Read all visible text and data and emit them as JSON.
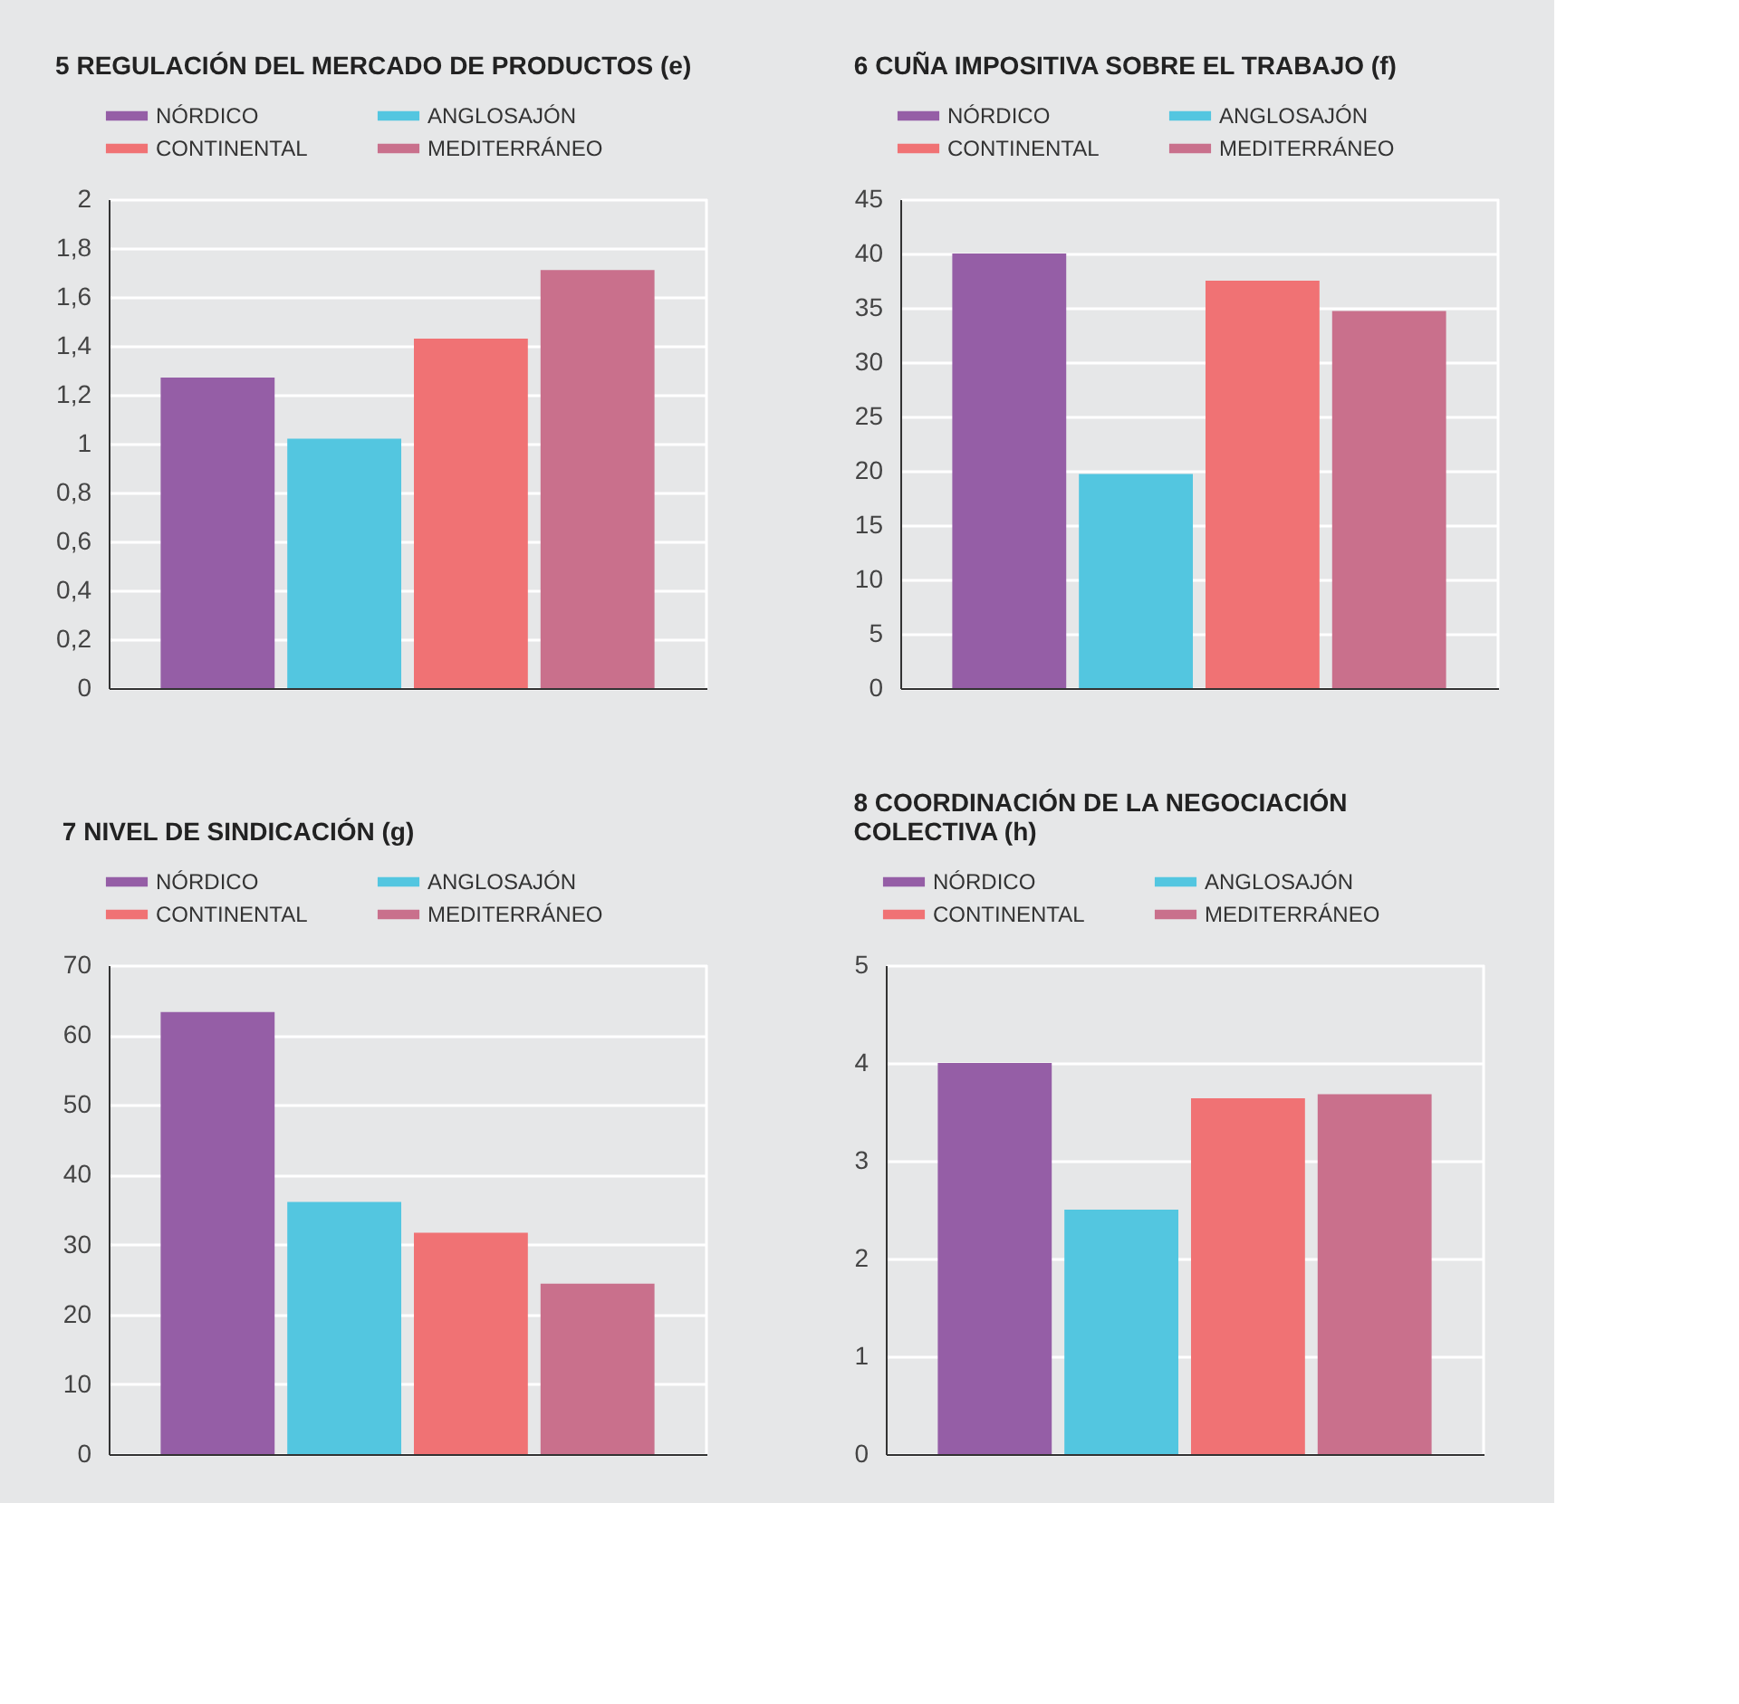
{
  "chart_data": [
    {
      "type": "bar",
      "title": "5  REGULACIÓN DEL MERCADO DE PRODUCTOS (e)",
      "categories": [
        null
      ],
      "legend": "top",
      "grid": "y",
      "tick_labels": "y",
      "ylim": [
        0,
        2
      ],
      "yticks": [
        0,
        {
          "value": 0.2,
          "label": "0,2"
        },
        {
          "value": 0.4,
          "label": "0,4"
        },
        {
          "value": 0.6,
          "label": "0,6"
        },
        {
          "value": 0.8,
          "label": "0,8"
        },
        1,
        {
          "value": 1.2,
          "label": "1,2"
        },
        {
          "value": 1.4,
          "label": "1,4"
        },
        {
          "value": 1.6,
          "label": "1,6"
        },
        {
          "value": 1.8,
          "label": "1,8"
        },
        2
      ],
      "series": [
        {
          "name": "NÓRDICO",
          "color": "#955ea6",
          "values": [
            1.27
          ]
        },
        {
          "name": "ANGLOSAJÓN",
          "color": "#53c6e0",
          "values": [
            1.02
          ]
        },
        {
          "name": "CONTINENTAL",
          "color": "#f07274",
          "values": [
            1.43
          ]
        },
        {
          "name": "MEDITERRÁNEO",
          "color": "#c9708c",
          "values": [
            1.71
          ]
        }
      ]
    },
    {
      "type": "bar",
      "title": "6  CUÑA IMPOSITIVA SOBRE EL TRABAJO (f)",
      "categories": [
        null
      ],
      "legend": "top",
      "grid": "y",
      "tick_labels": "y",
      "ylim": [
        0,
        45
      ],
      "yticks": [
        0,
        5,
        10,
        15,
        20,
        25,
        30,
        35,
        40,
        45
      ],
      "series": [
        {
          "name": "NÓRDICO",
          "color": "#955ea6",
          "values": [
            40
          ]
        },
        {
          "name": "ANGLOSAJÓN",
          "color": "#53c6e0",
          "values": [
            19.7
          ]
        },
        {
          "name": "CONTINENTAL",
          "color": "#f07274",
          "values": [
            37.5
          ]
        },
        {
          "name": "MEDITERRÁNEO",
          "color": "#c9708c",
          "values": [
            34.7
          ]
        }
      ]
    },
    {
      "type": "bar",
      "title": "7  NIVEL DE SINDICACIÓN (g)",
      "categories": [
        null
      ],
      "legend": "top",
      "grid": "y",
      "tick_labels": "y",
      "ylim": [
        0,
        70
      ],
      "yticks": [
        0,
        10,
        20,
        30,
        40,
        50,
        60,
        70
      ],
      "series": [
        {
          "name": "NÓRDICO",
          "color": "#955ea6",
          "values": [
            63.3
          ]
        },
        {
          "name": "ANGLOSAJÓN",
          "color": "#53c6e0",
          "values": [
            36.1
          ]
        },
        {
          "name": "CONTINENTAL",
          "color": "#f07274",
          "values": [
            31.7
          ]
        },
        {
          "name": "MEDITERRÁNEO",
          "color": "#c9708c",
          "values": [
            24.4
          ]
        }
      ]
    },
    {
      "type": "bar",
      "title": "8  COORDINACIÓN DE LA NEGOCIACIÓN COLECTIVA (h)",
      "categories": [
        null
      ],
      "legend": "top",
      "grid": "y",
      "tick_labels": "y",
      "ylim": [
        0,
        5
      ],
      "yticks": [
        0,
        1,
        2,
        3,
        4,
        5
      ],
      "series": [
        {
          "name": "NÓRDICO",
          "color": "#955ea6",
          "values": [
            4.0
          ]
        },
        {
          "name": "ANGLOSAJÓN",
          "color": "#53c6e0",
          "values": [
            2.5
          ]
        },
        {
          "name": "CONTINENTAL",
          "color": "#f07274",
          "values": [
            3.64
          ]
        },
        {
          "name": "MEDITERRÁNEO",
          "color": "#c9708c",
          "values": [
            3.68
          ]
        }
      ]
    }
  ]
}
